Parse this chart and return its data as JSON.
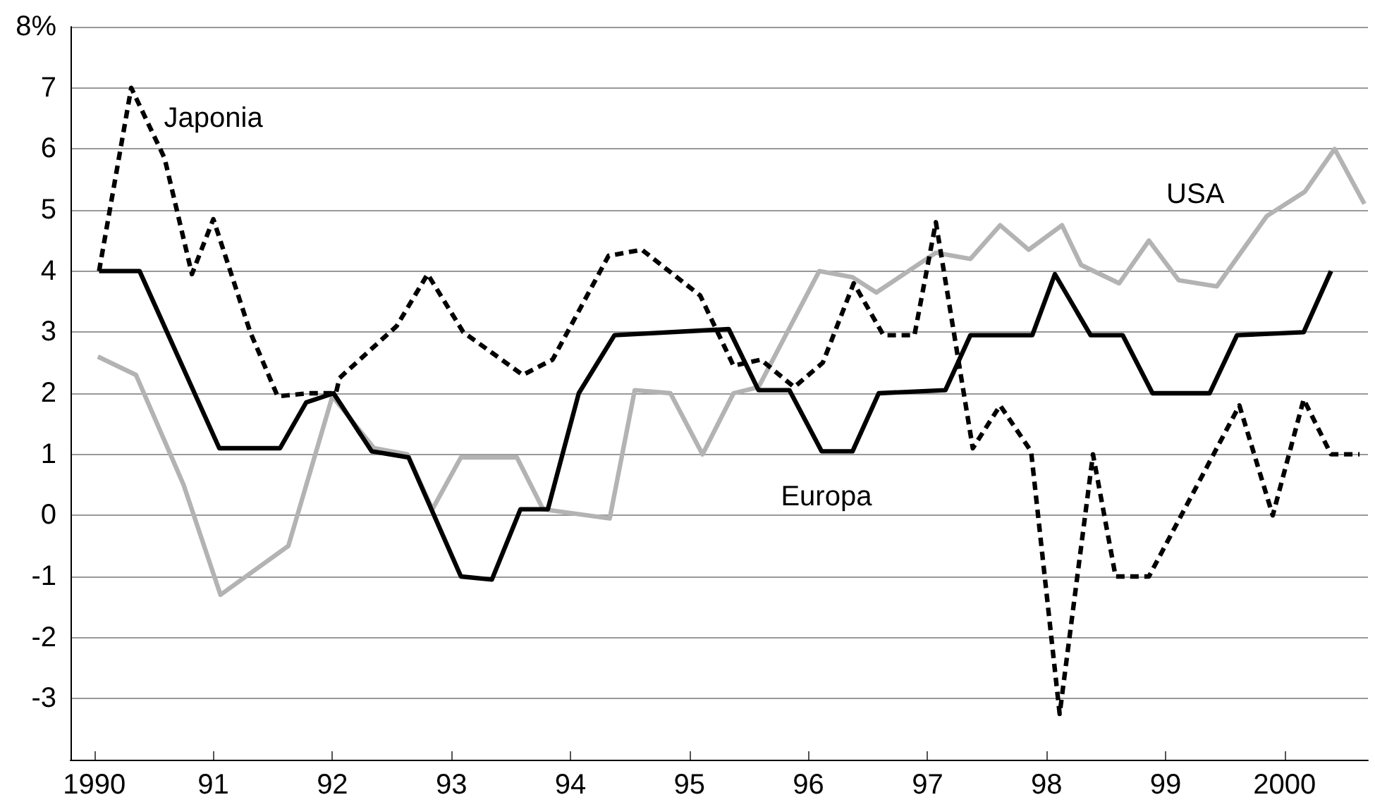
{
  "chart_data": {
    "type": "line",
    "xlim": [
      1989.8,
      2000.7
    ],
    "ylim": [
      -4,
      8
    ],
    "xticks": [
      {
        "value": 1990,
        "label": "1990"
      },
      {
        "value": 1991,
        "label": "91"
      },
      {
        "value": 1992,
        "label": "92"
      },
      {
        "value": 1993,
        "label": "93"
      },
      {
        "value": 1994,
        "label": "94"
      },
      {
        "value": 1995,
        "label": "95"
      },
      {
        "value": 1996,
        "label": "96"
      },
      {
        "value": 1997,
        "label": "97"
      },
      {
        "value": 1998,
        "label": "98"
      },
      {
        "value": 1999,
        "label": "99"
      },
      {
        "value": 2000,
        "label": "2000"
      }
    ],
    "yticks": [
      -3,
      -2,
      -1,
      0,
      1,
      2,
      3,
      4,
      5,
      6,
      7,
      {
        "value": 8,
        "label": "8%"
      }
    ],
    "grid": "y",
    "legend": false,
    "marker": "none",
    "series": [
      {
        "name": "USA",
        "color": "#b3b3b3",
        "line_style": "solid",
        "x": [
          1990.03,
          1990.35,
          1990.75,
          1991.06,
          1991.63,
          1992.0,
          1992.35,
          1992.63,
          1992.84,
          1993.08,
          1993.55,
          1993.77,
          1994.33,
          1994.54,
          1994.84,
          1995.11,
          1995.37,
          1995.58,
          1996.09,
          1996.37,
          1996.57,
          1997.07,
          1997.36,
          1997.61,
          1997.85,
          1998.13,
          1998.29,
          1998.61,
          1998.86,
          1999.11,
          1999.43,
          1999.85,
          2000.17,
          2000.42,
          2000.67
        ],
        "values": [
          2.6,
          2.3,
          0.5,
          -1.3,
          -0.5,
          1.95,
          1.1,
          1.0,
          0.1,
          0.95,
          0.95,
          0.1,
          -0.05,
          2.05,
          2.0,
          1.0,
          2.0,
          2.1,
          4.0,
          3.9,
          3.65,
          4.3,
          4.2,
          4.75,
          4.35,
          4.75,
          4.1,
          3.8,
          4.5,
          3.85,
          3.75,
          4.9,
          5.3,
          6.0,
          5.1
        ]
      },
      {
        "name": "Europa",
        "color": "#000000",
        "line_style": "solid",
        "x": [
          1990.04,
          1990.38,
          1991.05,
          1991.56,
          1991.78,
          1992.01,
          1992.33,
          1992.64,
          1993.08,
          1993.34,
          1993.58,
          1993.81,
          1994.07,
          1994.37,
          1995.33,
          1995.58,
          1995.84,
          1996.11,
          1996.37,
          1996.59,
          1997.15,
          1997.36,
          1997.88,
          1998.07,
          1998.37,
          1998.64,
          1998.89,
          1999.37,
          1999.6,
          2000.16,
          2000.39
        ],
        "values": [
          4.0,
          4.0,
          1.1,
          1.1,
          1.85,
          2.0,
          1.05,
          0.95,
          -1.0,
          -1.05,
          0.1,
          0.1,
          2.0,
          2.95,
          3.05,
          2.05,
          2.05,
          1.05,
          1.05,
          2.0,
          2.05,
          2.95,
          2.95,
          3.95,
          2.95,
          2.95,
          2.0,
          2.0,
          2.95,
          3.0,
          4.0
        ]
      },
      {
        "name": "Japonia",
        "color": "#000000",
        "line_style": "dashed",
        "x": [
          1990.04,
          1990.31,
          1990.59,
          1990.82,
          1991.0,
          1991.31,
          1991.54,
          1991.8,
          1992.03,
          1992.06,
          1992.54,
          1992.8,
          1993.1,
          1993.6,
          1993.85,
          1994.32,
          1994.6,
          1995.09,
          1995.37,
          1995.6,
          1995.88,
          1996.12,
          1996.38,
          1996.63,
          1996.89,
          1997.07,
          1997.38,
          1997.61,
          1997.87,
          1998.11,
          1998.39,
          1998.58,
          1998.86,
          1999.62,
          1999.9,
          2000.16,
          2000.39,
          2000.63
        ],
        "values": [
          4.0,
          7.0,
          5.85,
          3.95,
          4.85,
          3.0,
          1.95,
          2.0,
          2.0,
          2.25,
          3.1,
          3.95,
          3.0,
          2.3,
          2.55,
          4.25,
          4.35,
          3.6,
          2.45,
          2.55,
          2.1,
          2.5,
          3.8,
          2.95,
          2.95,
          4.8,
          1.1,
          1.8,
          1.05,
          -3.25,
          1.0,
          -1.0,
          -1.0,
          1.8,
          0.0,
          1.9,
          1.0,
          1.0
        ]
      }
    ]
  }
}
